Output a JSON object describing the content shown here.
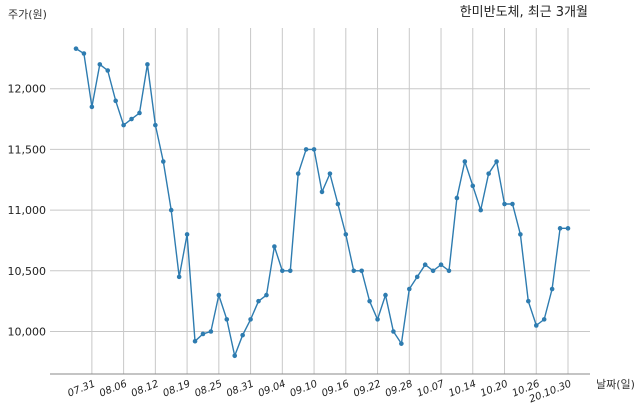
{
  "chart_data": {
    "type": "line",
    "title": "한미반도체, 최근 3개월",
    "ylabel": "주가(원)",
    "xlabel": "날짜(일)",
    "ylim": [
      9650,
      12500
    ],
    "yticks": [
      10000,
      10500,
      11000,
      11500,
      12000
    ],
    "ytick_labels": [
      "10,000",
      "10,500",
      "11,000",
      "11,500",
      "12,000"
    ],
    "xtick_labels": [
      "07.31",
      "08.06",
      "08.12",
      "08.19",
      "08.25",
      "08.31",
      "09.04",
      "09.10",
      "09.16",
      "09.22",
      "09.28",
      "10.07",
      "10.14",
      "10.20",
      "10.26",
      "20.10.30"
    ],
    "xtick_index": [
      2,
      6,
      10,
      14,
      18,
      22,
      26,
      30,
      34,
      38,
      42,
      46,
      50,
      54,
      58,
      62
    ],
    "grid": true,
    "series": [
      {
        "color": "#2e7cb0",
        "values": [
          12330,
          12290,
          11850,
          12200,
          12150,
          11900,
          11700,
          11750,
          11800,
          12200,
          11700,
          11400,
          11000,
          10450,
          10800,
          9920,
          9980,
          10000,
          10300,
          10100,
          9800,
          9970,
          10100,
          10250,
          10300,
          10700,
          10500,
          10500,
          11300,
          11500,
          11500,
          11150,
          11300,
          11050,
          10800,
          10500,
          10500,
          10250,
          10100,
          10300,
          10000,
          9900,
          10350,
          10450,
          10550,
          10500,
          10550,
          10500,
          11100,
          11400,
          11200,
          11000,
          11300,
          11400,
          11050,
          11050,
          10800,
          10250,
          10050,
          10100,
          10350,
          10850,
          10850
        ]
      }
    ]
  }
}
